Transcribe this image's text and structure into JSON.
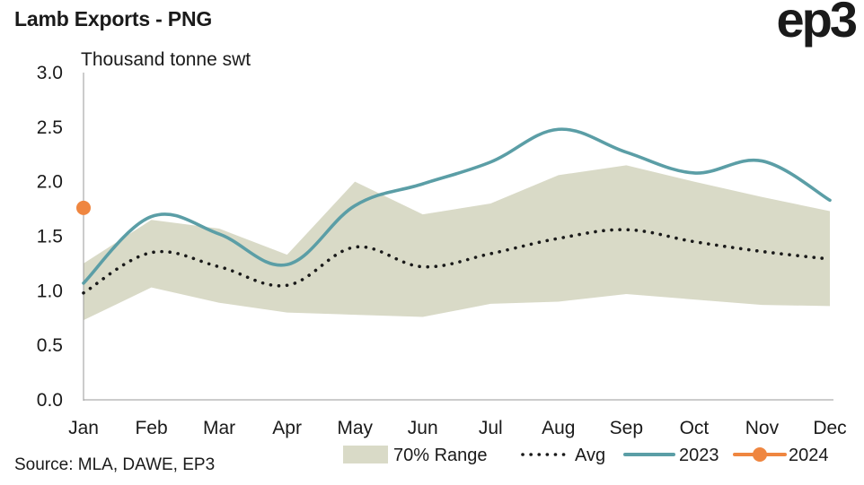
{
  "title": "Lamb Exports - PNG",
  "logo_text": "ep3",
  "source": "Source: MLA, DAWE, EP3",
  "chart_data": {
    "type": "line",
    "title": "Lamb Exports - PNG",
    "ylabel": "Thousand tonne swt",
    "ylim": [
      0,
      3.0
    ],
    "yticks": [
      "3.0",
      "2.5",
      "2.0",
      "1.5",
      "1.0",
      "0.5",
      "0.0"
    ],
    "ytick_values": [
      3.0,
      2.5,
      2.0,
      1.5,
      1.0,
      0.5,
      0.0
    ],
    "categories": [
      "Jan",
      "Feb",
      "Mar",
      "Apr",
      "May",
      "Jun",
      "Jul",
      "Aug",
      "Sep",
      "Oct",
      "Nov",
      "Dec"
    ],
    "grid": false,
    "legend_position": "bottom-right",
    "range": {
      "name": "70% Range",
      "upper": [
        1.25,
        1.65,
        1.57,
        1.33,
        2.0,
        1.7,
        1.8,
        2.06,
        2.15,
        2.0,
        1.86,
        1.73
      ],
      "lower": [
        0.73,
        1.03,
        0.89,
        0.8,
        0.78,
        0.76,
        0.88,
        0.9,
        0.97,
        0.92,
        0.87,
        0.86
      ],
      "color": "#d9dac7"
    },
    "series": [
      {
        "name": "Avg",
        "style": "dotted",
        "color": "#1a1a1a",
        "values": [
          0.98,
          1.35,
          1.22,
          1.05,
          1.4,
          1.22,
          1.34,
          1.48,
          1.56,
          1.45,
          1.36,
          1.29
        ]
      },
      {
        "name": "2023",
        "style": "line",
        "color": "#5b9ea6",
        "values": [
          1.07,
          1.68,
          1.52,
          1.24,
          1.78,
          1.98,
          2.18,
          2.48,
          2.27,
          2.08,
          2.19,
          1.83
        ]
      },
      {
        "name": "2024",
        "style": "point",
        "color": "#ef8640",
        "values": [
          1.76,
          null,
          null,
          null,
          null,
          null,
          null,
          null,
          null,
          null,
          null,
          null
        ]
      }
    ]
  }
}
